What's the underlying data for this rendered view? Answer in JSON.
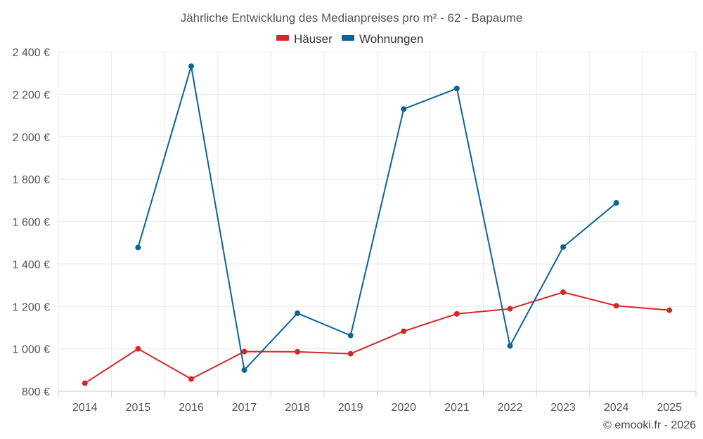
{
  "chart_data": {
    "type": "line",
    "title": "Jährliche Entwicklung des Medianpreises pro m² - 62 - Bapaume",
    "categories": [
      "2014",
      "2015",
      "2016",
      "2017",
      "2018",
      "2019",
      "2020",
      "2021",
      "2022",
      "2023",
      "2024",
      "2025"
    ],
    "y_ticks": [
      800,
      1000,
      1200,
      1400,
      1600,
      1800,
      2000,
      2200,
      2400
    ],
    "y_tick_labels": [
      "800 €",
      "1 000 €",
      "1 200 €",
      "1 400 €",
      "1 600 €",
      "1 800 €",
      "2 000 €",
      "2 200 €",
      "2 400 €"
    ],
    "ylim": [
      800,
      2400
    ],
    "grid": true,
    "legend_position": "top-center",
    "series": [
      {
        "name": "Häuser",
        "color": "#d62728",
        "values": [
          838,
          1000,
          858,
          987,
          986,
          977,
          1083,
          1165,
          1189,
          1267,
          1203,
          1182
        ]
      },
      {
        "name": "Wohnungen",
        "color": "#0a6399",
        "values": [
          null,
          1478,
          2333,
          900,
          1168,
          1063,
          2131,
          2228,
          1014,
          1480,
          1688,
          null
        ]
      }
    ],
    "credit": "© emooki.fr - 2026"
  }
}
